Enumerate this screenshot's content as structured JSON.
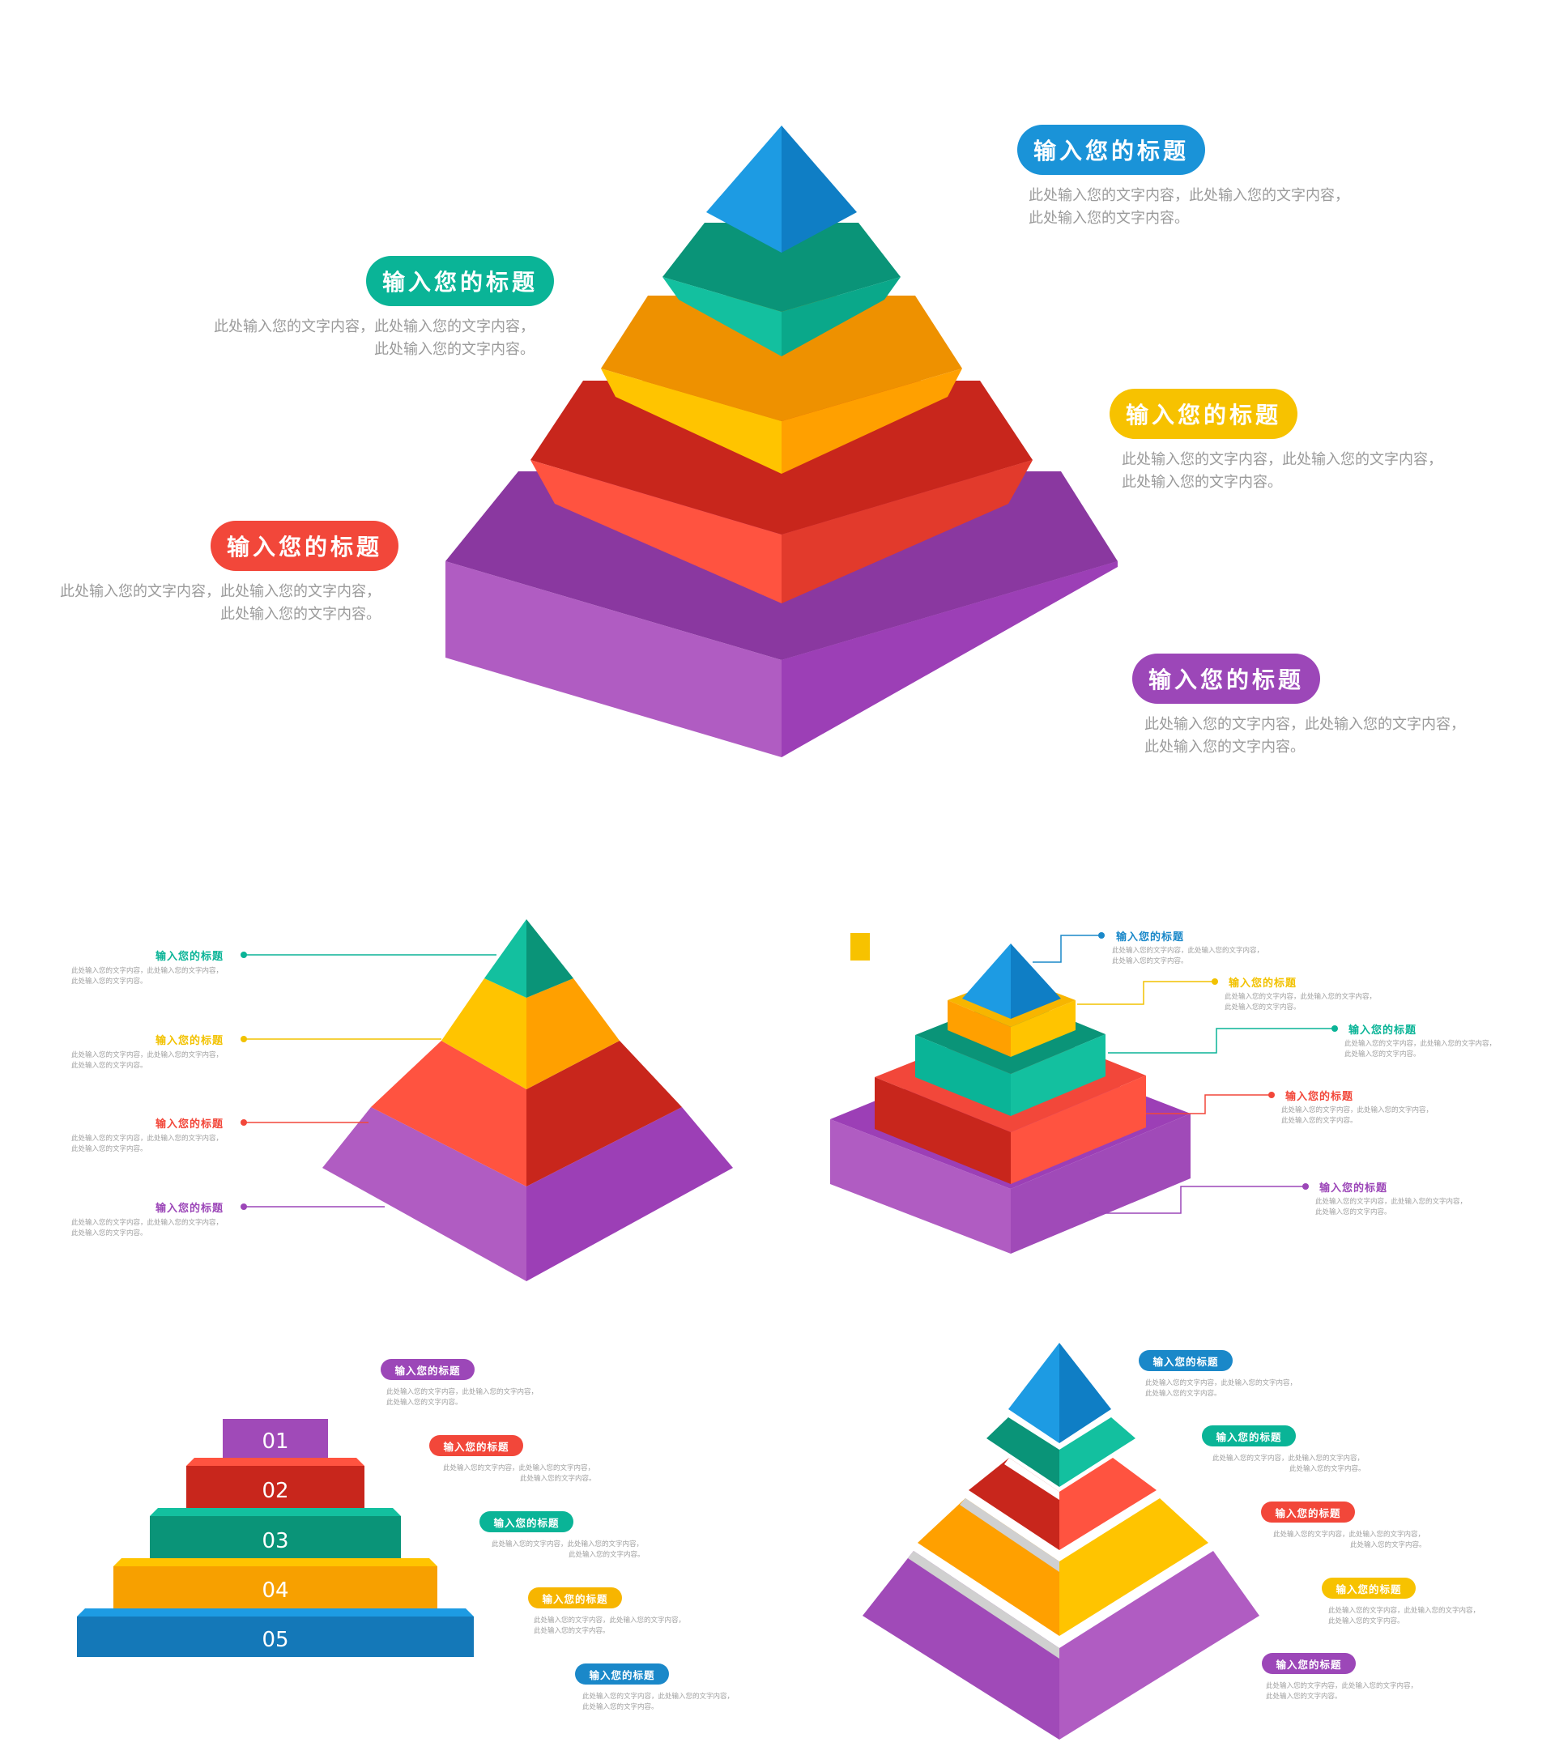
{
  "diagram1": {
    "items": [
      {
        "title": "输入您的标题",
        "line1": "此处输入您的文字内容，此处输入您的文字内容，",
        "line2": "此处输入您的文字内容。",
        "color": "#1a93d8"
      },
      {
        "title": "输入您的标题",
        "line1": "此处输入您的文字内容，此处输入您的文字内容，",
        "line2": "此处输入您的文字内容。",
        "color": "#0ab497"
      },
      {
        "title": "输入您的标题",
        "line1": "此处输入您的文字内容，此处输入您的文字内容，",
        "line2": "此处输入您的文字内容。",
        "color": "#f7c200"
      },
      {
        "title": "输入您的标题",
        "line1": "此处输入您的文字内容，此处输入您的文字内容，",
        "line2": "此处输入您的文字内容。",
        "color": "#f2473a"
      },
      {
        "title": "输入您的标题",
        "line1": "此处输入您的文字内容，此处输入您的文字内容，",
        "line2": "此处输入您的文字内容。",
        "color": "#9c47b8"
      }
    ]
  },
  "diagram2": {
    "items": [
      {
        "title": "输入您的标题",
        "line1": "此处输入您的文字内容，此处输入您的文字内容，",
        "line2": "此处输入您的文字内容。",
        "color": "#0ab497"
      },
      {
        "title": "输入您的标题",
        "line1": "此处输入您的文字内容，此处输入您的文字内容，",
        "line2": "此处输入您的文字内容。",
        "color": "#f2c200"
      },
      {
        "title": "输入您的标题",
        "line1": "此处输入您的文字内容，此处输入您的文字内容，",
        "line2": "此处输入您的文字内容。",
        "color": "#f2473a"
      },
      {
        "title": "输入您的标题",
        "line1": "此处输入您的文字内容，此处输入您的文字内容，",
        "line2": "此处输入您的文字内容。",
        "color": "#9c47b8"
      }
    ]
  },
  "diagram3": {
    "items": [
      {
        "title": "输入您的标题",
        "line1": "此处输入您的文字内容，此处输入您的文字内容，",
        "line2": "此处输入您的文字内容。",
        "color": "#1a88c9"
      },
      {
        "title": "输入您的标题",
        "line1": "此处输入您的文字内容，此处输入您的文字内容，",
        "line2": "此处输入您的文字内容。",
        "color": "#f2c200"
      },
      {
        "title": "输入您的标题",
        "line1": "此处输入您的文字内容，此处输入您的文字内容，",
        "line2": "此处输入您的文字内容。",
        "color": "#0ab497"
      },
      {
        "title": "输入您的标题",
        "line1": "此处输入您的文字内容，此处输入您的文字内容，",
        "line2": "此处输入您的文字内容。",
        "color": "#f2473a"
      },
      {
        "title": "输入您的标题",
        "line1": "此处输入您的文字内容，此处输入您的文字内容，",
        "line2": "此处输入您的文字内容。",
        "color": "#9c47b8"
      }
    ]
  },
  "diagram4": {
    "numbers": [
      "01",
      "02",
      "03",
      "04",
      "05"
    ],
    "items": [
      {
        "title": "输入您的标题",
        "line1": "此处输入您的文字内容，此处输入您的文字内容，",
        "line2": "此处输入您的文字内容。",
        "color": "#9c47b8"
      },
      {
        "title": "输入您的标题",
        "line1": "此处输入您的文字内容，此处输入您的文字内容，",
        "line2": "此处输入您的文字内容。",
        "color": "#f2473a"
      },
      {
        "title": "输入您的标题",
        "line1": "此处输入您的文字内容，此处输入您的文字内容，",
        "line2": "此处输入您的文字内容。",
        "color": "#0ab497"
      },
      {
        "title": "输入您的标题",
        "line1": "此处输入您的文字内容，此处输入您的文字内容，",
        "line2": "此处输入您的文字内容。",
        "color": "#f7b500"
      },
      {
        "title": "输入您的标题",
        "line1": "此处输入您的文字内容，此处输入您的文字内容，",
        "line2": "此处输入您的文字内容。",
        "color": "#1a88c9"
      }
    ]
  },
  "diagram5": {
    "items": [
      {
        "title": "输入您的标题",
        "line1": "此处输入您的文字内容，此处输入您的文字内容，",
        "line2": "此处输入您的文字内容。",
        "color": "#1a88c9"
      },
      {
        "title": "输入您的标题",
        "line1": "此处输入您的文字内容，此处输入您的文字内容，",
        "line2": "此处输入您的文字内容。",
        "color": "#0ab497"
      },
      {
        "title": "输入您的标题",
        "line1": "此处输入您的文字内容，此处输入您的文字内容，",
        "line2": "此处输入您的文字内容。",
        "color": "#f2473a"
      },
      {
        "title": "输入您的标题",
        "line1": "此处输入您的文字内容，此处输入您的文字内容，",
        "line2": "此处输入您的文字内容。",
        "color": "#f7c200"
      },
      {
        "title": "输入您的标题",
        "line1": "此处输入您的文字内容，此处输入您的文字内容，",
        "line2": "此处输入您的文字内容。",
        "color": "#9c47b8"
      }
    ]
  }
}
